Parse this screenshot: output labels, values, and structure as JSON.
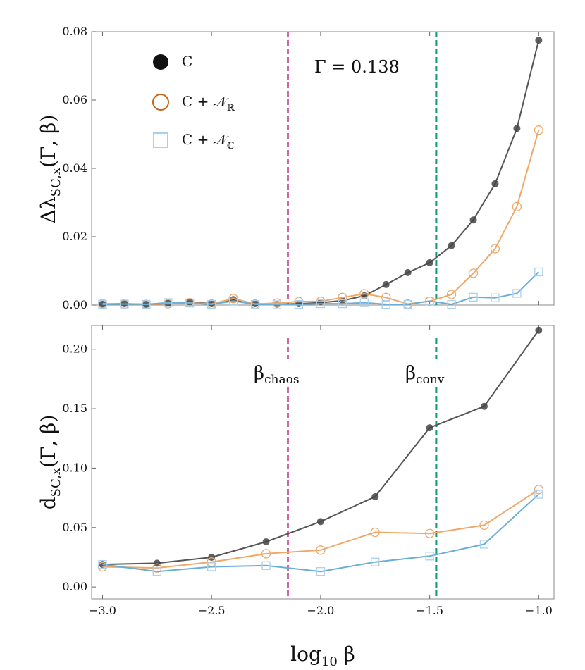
{
  "colors": {
    "C": "#555555",
    "C_marker": "#444444",
    "NR": "#f0a868",
    "NR_legend": "#c8621a",
    "NC": "#6aaed6",
    "NC_legend": "#a8d0ef",
    "chaos_line": "#cc6aa8",
    "conv_line": "#0f9a74"
  },
  "legend": {
    "items": [
      {
        "key": "C",
        "text": "C"
      },
      {
        "key": "NR",
        "text": "C + 𝒩",
        "sub": "ℝ"
      },
      {
        "key": "NC",
        "text": "C + 𝒩",
        "sub": "ℂ"
      }
    ]
  },
  "annotation": {
    "text": "Γ = 0.138"
  },
  "vlines": {
    "chaos": {
      "x": -2.15,
      "label": "β",
      "sub": "chaos"
    },
    "conv": {
      "x": -1.47,
      "label": "β",
      "sub": "conv"
    }
  },
  "xaxis": {
    "label": "log",
    "label_sub": "10",
    "label_tail": " β",
    "lim": [
      -3.05,
      -0.93
    ],
    "ticks": [
      -3.0,
      -2.5,
      -2.0,
      -1.5,
      -1.0
    ],
    "tick_labels": [
      "−3.0",
      "−2.5",
      "−2.0",
      "−1.5",
      "−1.0"
    ]
  },
  "chart_data": [
    {
      "type": "line",
      "ylabel": "Δλ",
      "ylabel_sub": "SC,x",
      "ylabel_tail": "(Γ, β)",
      "xlim": [
        -3.05,
        -0.93
      ],
      "ylim": [
        0.0,
        0.08
      ],
      "yticks": [
        0.0,
        0.02,
        0.04,
        0.06,
        0.08
      ],
      "ytick_labels": [
        "0.00",
        "0.02",
        "0.04",
        "0.06",
        "0.08"
      ],
      "series": [
        {
          "name": "C",
          "key": "C",
          "x": [
            -3.0,
            -2.9,
            -2.8,
            -2.7,
            -2.6,
            -2.5,
            -2.4,
            -2.3,
            -2.2,
            -2.1,
            -2.0,
            -1.9,
            -1.8,
            -1.7,
            -1.6,
            -1.5,
            -1.4,
            -1.3,
            -1.2,
            -1.1,
            -1.0
          ],
          "y": [
            0.0003,
            0.0004,
            0.0002,
            0.0005,
            0.0009,
            0.0004,
            0.0016,
            0.0004,
            0.0002,
            0.0004,
            0.0007,
            0.0013,
            0.0027,
            0.006,
            0.0095,
            0.0124,
            0.0174,
            0.0249,
            0.0355,
            0.0517,
            0.0775
          ]
        },
        {
          "name": "C + 𝒩ℝ",
          "key": "NR",
          "x": [
            -3.0,
            -2.9,
            -2.8,
            -2.7,
            -2.6,
            -2.5,
            -2.4,
            -2.3,
            -2.2,
            -2.1,
            -2.0,
            -1.9,
            -1.8,
            -1.7,
            -1.6,
            -1.5,
            -1.4,
            -1.3,
            -1.2,
            -1.1,
            -1.0
          ],
          "y": [
            0.0004,
            0.0003,
            0.0002,
            0.0004,
            0.0007,
            0.0003,
            0.0019,
            0.0003,
            0.0006,
            0.001,
            0.0011,
            0.0022,
            0.0033,
            0.0022,
            0.0003,
            0.0011,
            0.0031,
            0.0093,
            0.0165,
            0.0288,
            0.0512
          ]
        },
        {
          "name": "C + 𝒩ℂ",
          "key": "NC",
          "x": [
            -3.0,
            -2.9,
            -2.8,
            -2.7,
            -2.6,
            -2.5,
            -2.4,
            -2.3,
            -2.2,
            -2.1,
            -2.0,
            -1.9,
            -1.8,
            -1.7,
            -1.6,
            -1.5,
            -1.4,
            -1.3,
            -1.2,
            -1.1,
            -1.0
          ],
          "y": [
            0.0002,
            0.0003,
            0.0002,
            0.0007,
            0.0006,
            0.0002,
            0.0012,
            0.0002,
            0.0001,
            0.0002,
            0.0004,
            0.0004,
            0.0007,
            0.0002,
            0.0002,
            0.0012,
            0.0002,
            0.0023,
            0.0021,
            0.0034,
            0.0097
          ]
        }
      ]
    },
    {
      "type": "line",
      "ylabel": "d",
      "ylabel_sub": "SC,x",
      "ylabel_tail": "(Γ, β)",
      "xlim": [
        -3.05,
        -0.93
      ],
      "ylim": [
        -0.01,
        0.22
      ],
      "yticks": [
        0.0,
        0.05,
        0.1,
        0.15,
        0.2
      ],
      "ytick_labels": [
        "0.00",
        "0.05",
        "0.10",
        "0.15",
        "0.20"
      ],
      "series": [
        {
          "name": "C",
          "key": "C",
          "x": [
            -3.0,
            -2.75,
            -2.5,
            -2.25,
            -2.0,
            -1.75,
            -1.5,
            -1.25,
            -1.0
          ],
          "y": [
            0.019,
            0.02,
            0.025,
            0.038,
            0.055,
            0.076,
            0.134,
            0.152,
            0.216
          ]
        },
        {
          "name": "C + 𝒩ℝ",
          "key": "NR",
          "x": [
            -3.0,
            -2.75,
            -2.5,
            -2.25,
            -2.0,
            -1.75,
            -1.5,
            -1.25,
            -1.0
          ],
          "y": [
            0.017,
            0.016,
            0.021,
            0.028,
            0.031,
            0.046,
            0.045,
            0.052,
            0.082
          ]
        },
        {
          "name": "C + 𝒩ℂ",
          "key": "NC",
          "x": [
            -3.0,
            -2.75,
            -2.5,
            -2.25,
            -2.0,
            -1.75,
            -1.5,
            -1.25,
            -1.0
          ],
          "y": [
            0.019,
            0.013,
            0.017,
            0.018,
            0.013,
            0.021,
            0.026,
            0.036,
            0.078
          ]
        }
      ]
    }
  ]
}
